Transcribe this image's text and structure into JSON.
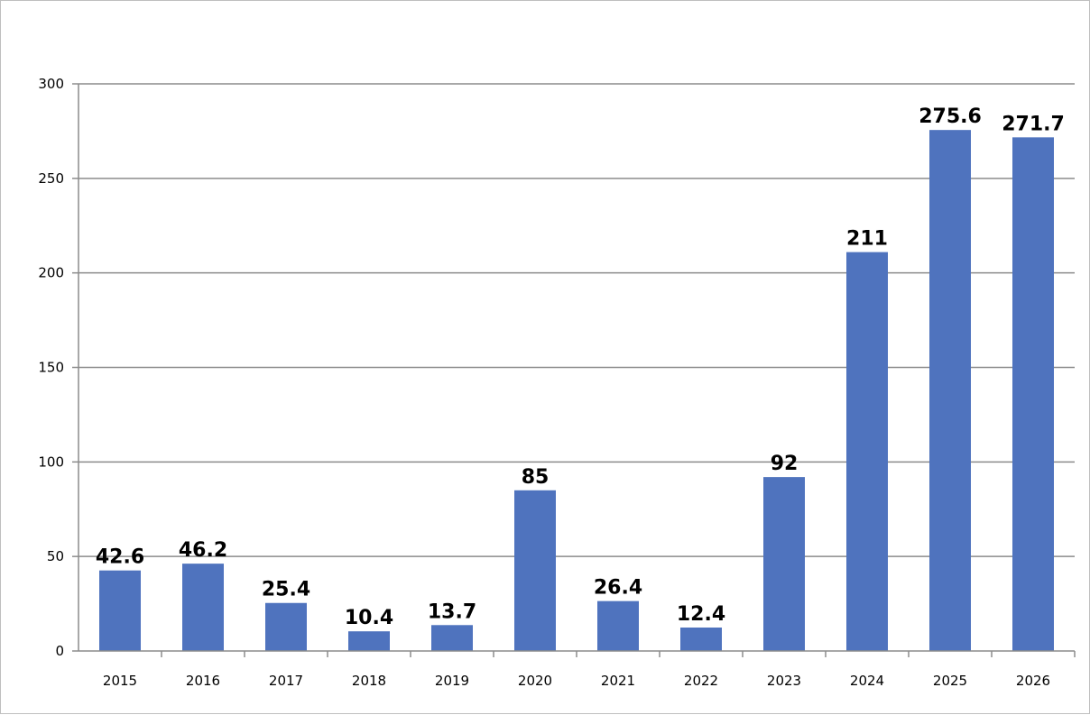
{
  "chart_data": {
    "type": "bar",
    "categories": [
      "2015",
      "2016",
      "2017",
      "2018",
      "2019",
      "2020",
      "2021",
      "2022",
      "2023",
      "2024",
      "2025",
      "2026"
    ],
    "values": [
      42.6,
      46.2,
      25.4,
      10.4,
      13.7,
      85,
      26.4,
      12.4,
      92,
      211,
      275.6,
      271.7
    ],
    "data_labels": [
      "42.6",
      "46.2",
      "25.4",
      "10.4",
      "13.7",
      "85",
      "26.4",
      "12.4",
      "92",
      "211",
      "275.6",
      "271.7"
    ],
    "title": "",
    "xlabel": "",
    "ylabel": "",
    "ylim": [
      0,
      300
    ],
    "yticks": [
      "0",
      "50",
      "100",
      "150",
      "200",
      "250",
      "300"
    ],
    "grid": "horizontal",
    "legend": "none",
    "bar_color": "#4f73be",
    "grid_color": "#8c8c8c"
  }
}
